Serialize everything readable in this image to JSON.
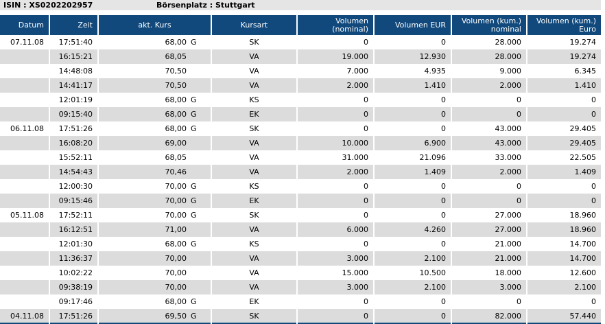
{
  "meta": {
    "isin_label": "ISIN : XS0202202957",
    "boersenplatz_label": "Börsenplatz : Stuttgart"
  },
  "colors": {
    "header_bg": "#11497c",
    "header_text": "#ffffff",
    "alt_row_bg": "#dcdcdc",
    "topbar_bg": "#e5e5e5",
    "bottom_line": "#11497c"
  },
  "table": {
    "columns": [
      {
        "id": "datum",
        "lines": [
          "Datum"
        ],
        "align": "right"
      },
      {
        "id": "zeit",
        "lines": [
          "Zeit"
        ],
        "align": "right"
      },
      {
        "id": "kurs",
        "lines": [
          "akt. Kurs"
        ],
        "align": "center"
      },
      {
        "id": "kursart",
        "lines": [
          "Kursart"
        ],
        "align": "center"
      },
      {
        "id": "vol_nominal",
        "lines": [
          "Volumen",
          "(nominal)"
        ],
        "align": "right"
      },
      {
        "id": "vol_eur",
        "lines": [
          "Volumen EUR"
        ],
        "align": "right"
      },
      {
        "id": "vol_kum_nominal",
        "lines": [
          "Volumen (kum.)",
          "nominal"
        ],
        "align": "right"
      },
      {
        "id": "vol_kum_euro",
        "lines": [
          "Volumen (kum.)",
          "Euro"
        ],
        "align": "right"
      }
    ],
    "rows": [
      {
        "datum": "07.11.08",
        "zeit": "17:51:40",
        "kurs": "68,00",
        "kurs_suffix": "G",
        "kursart": "SK",
        "vol_nominal": "0",
        "vol_eur": "0",
        "vol_kum_nominal": "28.000",
        "vol_kum_euro": "19.274"
      },
      {
        "datum": "",
        "zeit": "16:15:21",
        "kurs": "68,05",
        "kurs_suffix": "",
        "kursart": "VA",
        "vol_nominal": "19.000",
        "vol_eur": "12.930",
        "vol_kum_nominal": "28.000",
        "vol_kum_euro": "19.274"
      },
      {
        "datum": "",
        "zeit": "14:48:08",
        "kurs": "70,50",
        "kurs_suffix": "",
        "kursart": "VA",
        "vol_nominal": "7.000",
        "vol_eur": "4.935",
        "vol_kum_nominal": "9.000",
        "vol_kum_euro": "6.345"
      },
      {
        "datum": "",
        "zeit": "14:41:17",
        "kurs": "70,50",
        "kurs_suffix": "",
        "kursart": "VA",
        "vol_nominal": "2.000",
        "vol_eur": "1.410",
        "vol_kum_nominal": "2.000",
        "vol_kum_euro": "1.410"
      },
      {
        "datum": "",
        "zeit": "12:01:19",
        "kurs": "68,00",
        "kurs_suffix": "G",
        "kursart": "KS",
        "vol_nominal": "0",
        "vol_eur": "0",
        "vol_kum_nominal": "0",
        "vol_kum_euro": "0"
      },
      {
        "datum": "",
        "zeit": "09:15:40",
        "kurs": "68,00",
        "kurs_suffix": "G",
        "kursart": "EK",
        "vol_nominal": "0",
        "vol_eur": "0",
        "vol_kum_nominal": "0",
        "vol_kum_euro": "0"
      },
      {
        "datum": "06.11.08",
        "zeit": "17:51:26",
        "kurs": "68,00",
        "kurs_suffix": "G",
        "kursart": "SK",
        "vol_nominal": "0",
        "vol_eur": "0",
        "vol_kum_nominal": "43.000",
        "vol_kum_euro": "29.405"
      },
      {
        "datum": "",
        "zeit": "16:08:20",
        "kurs": "69,00",
        "kurs_suffix": "",
        "kursart": "VA",
        "vol_nominal": "10.000",
        "vol_eur": "6.900",
        "vol_kum_nominal": "43.000",
        "vol_kum_euro": "29.405"
      },
      {
        "datum": "",
        "zeit": "15:52:11",
        "kurs": "68,05",
        "kurs_suffix": "",
        "kursart": "VA",
        "vol_nominal": "31.000",
        "vol_eur": "21.096",
        "vol_kum_nominal": "33.000",
        "vol_kum_euro": "22.505"
      },
      {
        "datum": "",
        "zeit": "14:54:43",
        "kurs": "70,46",
        "kurs_suffix": "",
        "kursart": "VA",
        "vol_nominal": "2.000",
        "vol_eur": "1.409",
        "vol_kum_nominal": "2.000",
        "vol_kum_euro": "1.409"
      },
      {
        "datum": "",
        "zeit": "12:00:30",
        "kurs": "70,00",
        "kurs_suffix": "G",
        "kursart": "KS",
        "vol_nominal": "0",
        "vol_eur": "0",
        "vol_kum_nominal": "0",
        "vol_kum_euro": "0"
      },
      {
        "datum": "",
        "zeit": "09:15:46",
        "kurs": "70,00",
        "kurs_suffix": "G",
        "kursart": "EK",
        "vol_nominal": "0",
        "vol_eur": "0",
        "vol_kum_nominal": "0",
        "vol_kum_euro": "0"
      },
      {
        "datum": "05.11.08",
        "zeit": "17:52:11",
        "kurs": "70,00",
        "kurs_suffix": "G",
        "kursart": "SK",
        "vol_nominal": "0",
        "vol_eur": "0",
        "vol_kum_nominal": "27.000",
        "vol_kum_euro": "18.960"
      },
      {
        "datum": "",
        "zeit": "16:12:51",
        "kurs": "71,00",
        "kurs_suffix": "",
        "kursart": "VA",
        "vol_nominal": "6.000",
        "vol_eur": "4.260",
        "vol_kum_nominal": "27.000",
        "vol_kum_euro": "18.960"
      },
      {
        "datum": "",
        "zeit": "12:01:30",
        "kurs": "68,00",
        "kurs_suffix": "G",
        "kursart": "KS",
        "vol_nominal": "0",
        "vol_eur": "0",
        "vol_kum_nominal": "21.000",
        "vol_kum_euro": "14.700"
      },
      {
        "datum": "",
        "zeit": "11:36:37",
        "kurs": "70,00",
        "kurs_suffix": "",
        "kursart": "VA",
        "vol_nominal": "3.000",
        "vol_eur": "2.100",
        "vol_kum_nominal": "21.000",
        "vol_kum_euro": "14.700"
      },
      {
        "datum": "",
        "zeit": "10:02:22",
        "kurs": "70,00",
        "kurs_suffix": "",
        "kursart": "VA",
        "vol_nominal": "15.000",
        "vol_eur": "10.500",
        "vol_kum_nominal": "18.000",
        "vol_kum_euro": "12.600"
      },
      {
        "datum": "",
        "zeit": "09:38:19",
        "kurs": "70,00",
        "kurs_suffix": "",
        "kursart": "VA",
        "vol_nominal": "3.000",
        "vol_eur": "2.100",
        "vol_kum_nominal": "3.000",
        "vol_kum_euro": "2.100"
      },
      {
        "datum": "",
        "zeit": "09:17:46",
        "kurs": "68,00",
        "kurs_suffix": "G",
        "kursart": "EK",
        "vol_nominal": "0",
        "vol_eur": "0",
        "vol_kum_nominal": "0",
        "vol_kum_euro": "0"
      },
      {
        "datum": "04.11.08",
        "zeit": "17:51:26",
        "kurs": "69,50",
        "kurs_suffix": "G",
        "kursart": "SK",
        "vol_nominal": "0",
        "vol_eur": "0",
        "vol_kum_nominal": "82.000",
        "vol_kum_euro": "57.440"
      }
    ]
  }
}
